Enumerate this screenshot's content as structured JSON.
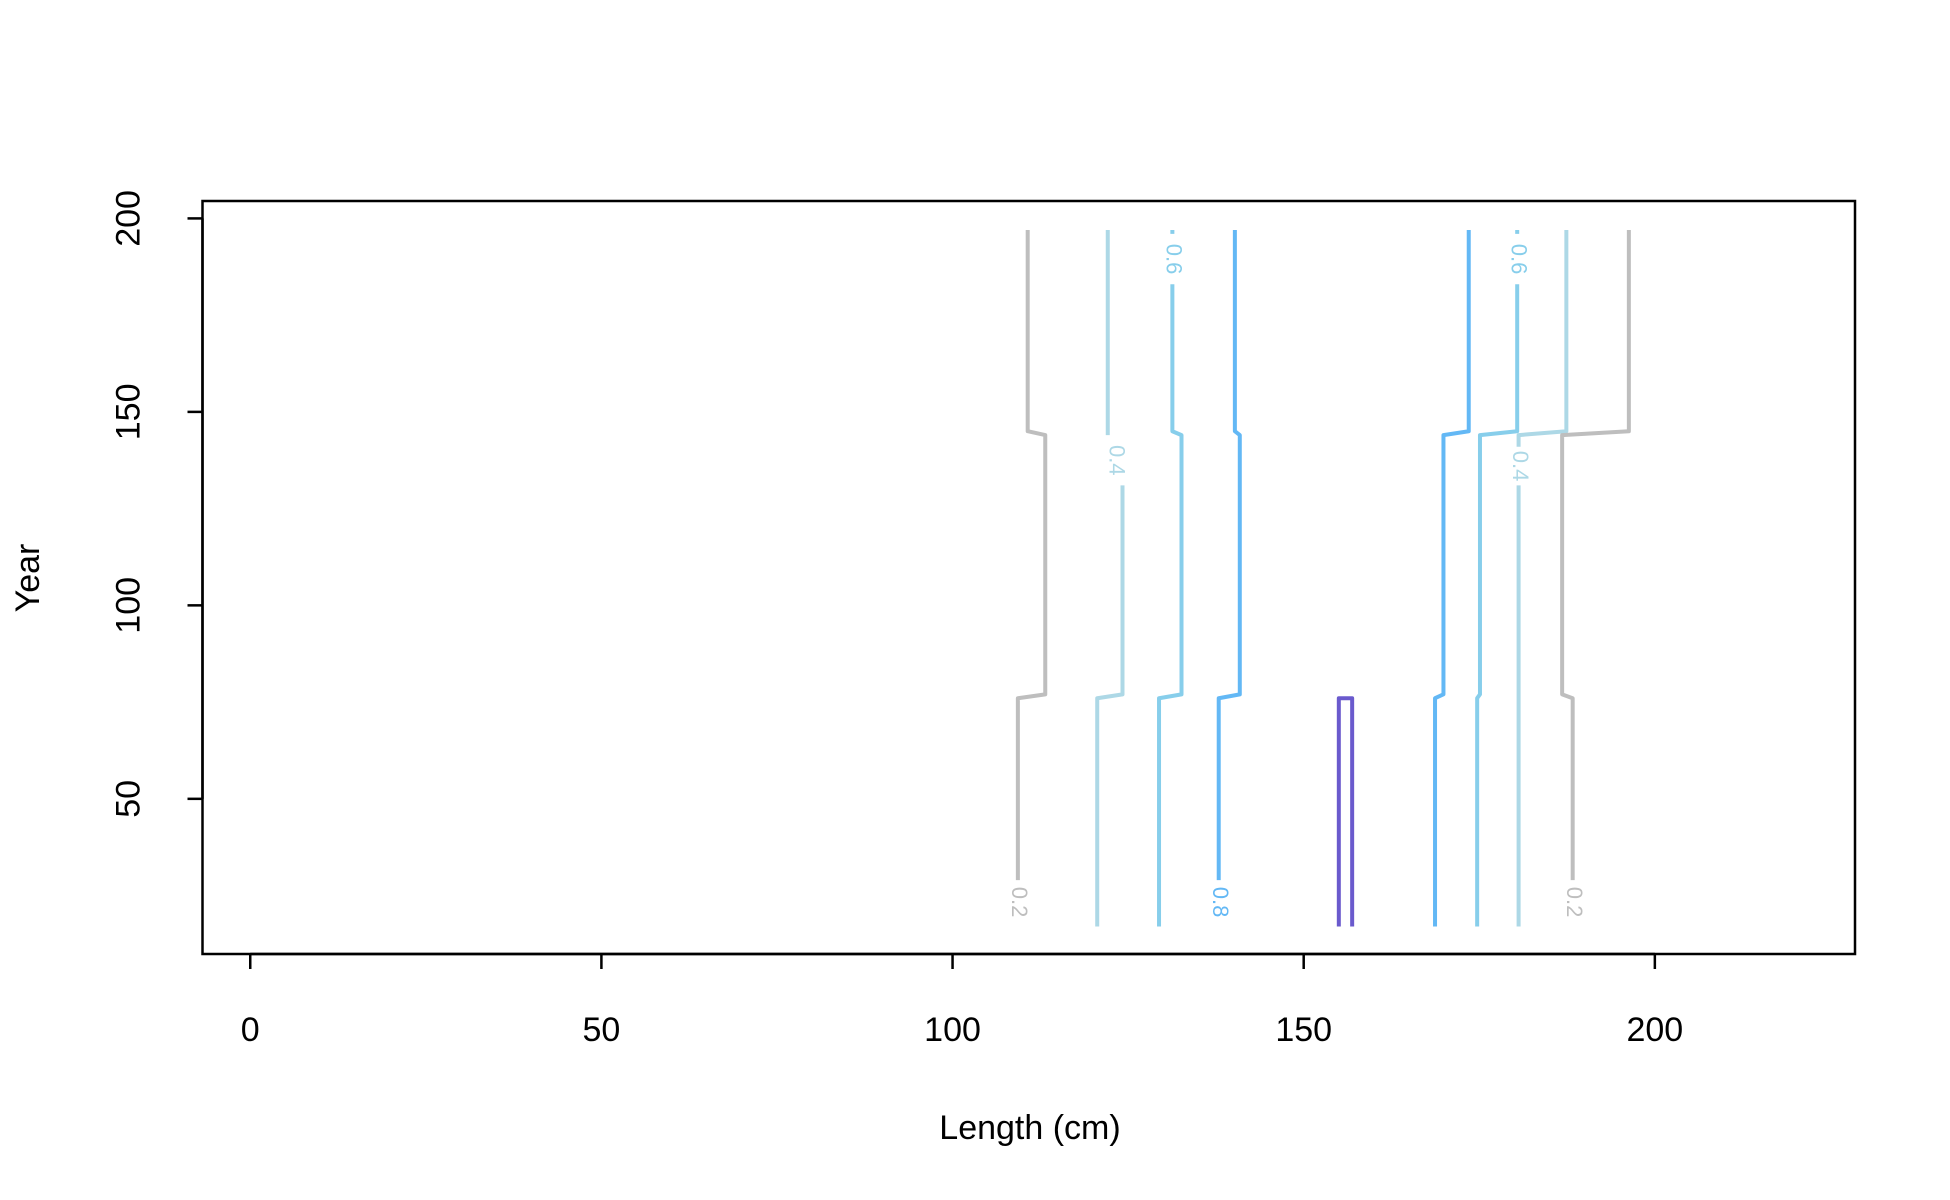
{
  "chart_data": {
    "type": "contour",
    "x_label": "Length (cm)",
    "y_label": "Year",
    "xlim": [
      -6.8,
      228.5
    ],
    "ylim": [
      9.9,
      204.5
    ],
    "xticks": [
      0,
      50,
      100,
      150,
      200
    ],
    "yticks": [
      50,
      100,
      150,
      200
    ],
    "series": [
      {
        "level": 0.2,
        "color": "#bebebe",
        "x": [
          109.3,
          109.3,
          113.2,
          113.2,
          110.7,
          110.7
        ],
        "values": [
          29,
          76,
          77,
          144,
          145,
          197
        ]
      },
      {
        "level": 0.4,
        "color": "#add8e6",
        "x": [
          120.6,
          120.6,
          124.2,
          124.2,
          null,
          122.1,
          122.1
        ],
        "values": [
          17,
          76,
          77,
          131,
          null,
          144,
          197
        ]
      },
      {
        "level": 0.6,
        "color": "#87ceeb",
        "x": [
          129.4,
          129.4,
          132.6,
          132.6,
          131.3,
          131.3,
          null,
          131.3,
          131.3
        ],
        "values": [
          17,
          76,
          77,
          144,
          145,
          183,
          null,
          196,
          197
        ]
      },
      {
        "level": 0.8,
        "color": "#63b8f5",
        "x": [
          137.9,
          137.9,
          140.9,
          140.9,
          140.2,
          140.2
        ],
        "values": [
          29,
          76,
          77,
          144,
          145,
          197
        ]
      },
      {
        "color": "#6a5acd",
        "x": [
          155,
          155,
          156.9,
          156.9
        ],
        "values": [
          17,
          76,
          76,
          17
        ]
      },
      {
        "color": "#63b8f5",
        "x": [
          168.7,
          168.7,
          169.9,
          169.9,
          173.5,
          173.5
        ],
        "values": [
          17,
          76,
          77,
          144,
          145,
          197
        ]
      },
      {
        "level": 0.6,
        "color": "#87ceeb",
        "x": [
          174.7,
          174.7,
          175.1,
          175.1,
          180.4,
          180.4,
          null,
          180.4,
          180.4
        ],
        "values": [
          17,
          76,
          77,
          144,
          145,
          183,
          null,
          196,
          197
        ]
      },
      {
        "level": 0.4,
        "color": "#add8e6",
        "x": [
          180.6,
          180.6,
          null,
          180.6,
          180.6,
          187.4,
          187.4
        ],
        "values": [
          17,
          131,
          null,
          141,
          144,
          145,
          197
        ]
      },
      {
        "level": 0.2,
        "color": "#bebebe",
        "x": [
          188.3,
          188.3,
          186.8,
          186.8,
          196.3,
          196.3
        ],
        "values": [
          29,
          76,
          77,
          144,
          145,
          197
        ]
      }
    ]
  }
}
